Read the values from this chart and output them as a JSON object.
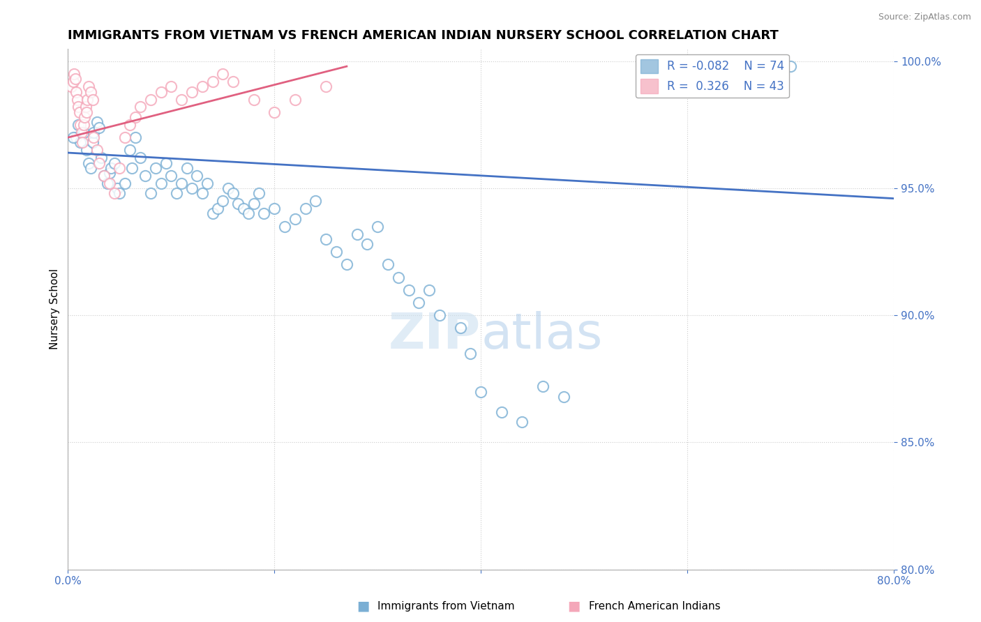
{
  "title": "IMMIGRANTS FROM VIETNAM VS FRENCH AMERICAN INDIAN NURSERY SCHOOL CORRELATION CHART",
  "source": "Source: ZipAtlas.com",
  "xlabel_bottom": [
    "Immigrants from Vietnam",
    "French American Indians"
  ],
  "ylabel": "Nursery School",
  "xlim": [
    0.0,
    0.8
  ],
  "ylim": [
    0.8,
    1.005
  ],
  "xtick_labels": [
    "0.0%",
    "",
    "",
    "",
    "80.0%"
  ],
  "ytick_labels": [
    "80.0%",
    "85.0%",
    "90.0%",
    "95.0%",
    "100.0%"
  ],
  "yticks": [
    0.8,
    0.85,
    0.9,
    0.95,
    1.0
  ],
  "xticks": [
    0.0,
    0.2,
    0.4,
    0.6,
    0.8
  ],
  "blue_color": "#7bafd4",
  "pink_color": "#f4a7b9",
  "blue_line_color": "#4472c4",
  "pink_line_color": "#e06080",
  "legend_R_blue": "R = -0.082",
  "legend_N_blue": "N = 74",
  "legend_R_pink": "R =  0.326",
  "legend_N_pink": "N = 43",
  "blue_scatter_x": [
    0.008,
    0.01,
    0.012,
    0.015,
    0.018,
    0.02,
    0.022,
    0.024,
    0.025,
    0.028,
    0.03,
    0.032,
    0.035,
    0.038,
    0.04,
    0.042,
    0.045,
    0.048,
    0.05,
    0.055,
    0.06,
    0.062,
    0.065,
    0.07,
    0.075,
    0.08,
    0.085,
    0.09,
    0.095,
    0.1,
    0.105,
    0.11,
    0.115,
    0.12,
    0.125,
    0.13,
    0.135,
    0.14,
    0.145,
    0.15,
    0.155,
    0.16,
    0.165,
    0.17,
    0.175,
    0.18,
    0.185,
    0.19,
    0.2,
    0.21,
    0.22,
    0.23,
    0.24,
    0.25,
    0.26,
    0.27,
    0.28,
    0.29,
    0.3,
    0.31,
    0.32,
    0.33,
    0.34,
    0.35,
    0.36,
    0.38,
    0.39,
    0.4,
    0.42,
    0.44,
    0.46,
    0.48,
    0.7,
    0.005
  ],
  "blue_scatter_y": [
    0.97,
    0.975,
    0.968,
    0.972,
    0.965,
    0.96,
    0.958,
    0.968,
    0.972,
    0.976,
    0.974,
    0.962,
    0.955,
    0.952,
    0.956,
    0.958,
    0.96,
    0.95,
    0.948,
    0.952,
    0.965,
    0.958,
    0.97,
    0.962,
    0.955,
    0.948,
    0.958,
    0.952,
    0.96,
    0.955,
    0.948,
    0.952,
    0.958,
    0.95,
    0.955,
    0.948,
    0.952,
    0.94,
    0.942,
    0.945,
    0.95,
    0.948,
    0.944,
    0.942,
    0.94,
    0.944,
    0.948,
    0.94,
    0.942,
    0.935,
    0.938,
    0.942,
    0.945,
    0.93,
    0.925,
    0.92,
    0.932,
    0.928,
    0.935,
    0.92,
    0.915,
    0.91,
    0.905,
    0.91,
    0.9,
    0.895,
    0.885,
    0.87,
    0.862,
    0.858,
    0.872,
    0.868,
    0.998,
    0.97
  ],
  "pink_scatter_x": [
    0.003,
    0.005,
    0.006,
    0.007,
    0.008,
    0.009,
    0.01,
    0.011,
    0.012,
    0.013,
    0.014,
    0.015,
    0.016,
    0.017,
    0.018,
    0.019,
    0.02,
    0.022,
    0.024,
    0.025,
    0.028,
    0.03,
    0.035,
    0.04,
    0.045,
    0.05,
    0.055,
    0.06,
    0.065,
    0.07,
    0.08,
    0.09,
    0.1,
    0.11,
    0.12,
    0.13,
    0.14,
    0.15,
    0.16,
    0.18,
    0.2,
    0.22,
    0.25
  ],
  "pink_scatter_y": [
    0.99,
    0.992,
    0.995,
    0.993,
    0.988,
    0.985,
    0.982,
    0.98,
    0.975,
    0.972,
    0.968,
    0.975,
    0.978,
    0.982,
    0.98,
    0.985,
    0.99,
    0.988,
    0.985,
    0.97,
    0.965,
    0.96,
    0.955,
    0.952,
    0.948,
    0.958,
    0.97,
    0.975,
    0.978,
    0.982,
    0.985,
    0.988,
    0.99,
    0.985,
    0.988,
    0.99,
    0.992,
    0.995,
    0.992,
    0.985,
    0.98,
    0.985,
    0.99
  ],
  "blue_trend_x": [
    0.0,
    0.8
  ],
  "blue_trend_y": [
    0.964,
    0.946
  ],
  "pink_trend_x": [
    0.0,
    0.27
  ],
  "pink_trend_y": [
    0.97,
    0.998
  ]
}
